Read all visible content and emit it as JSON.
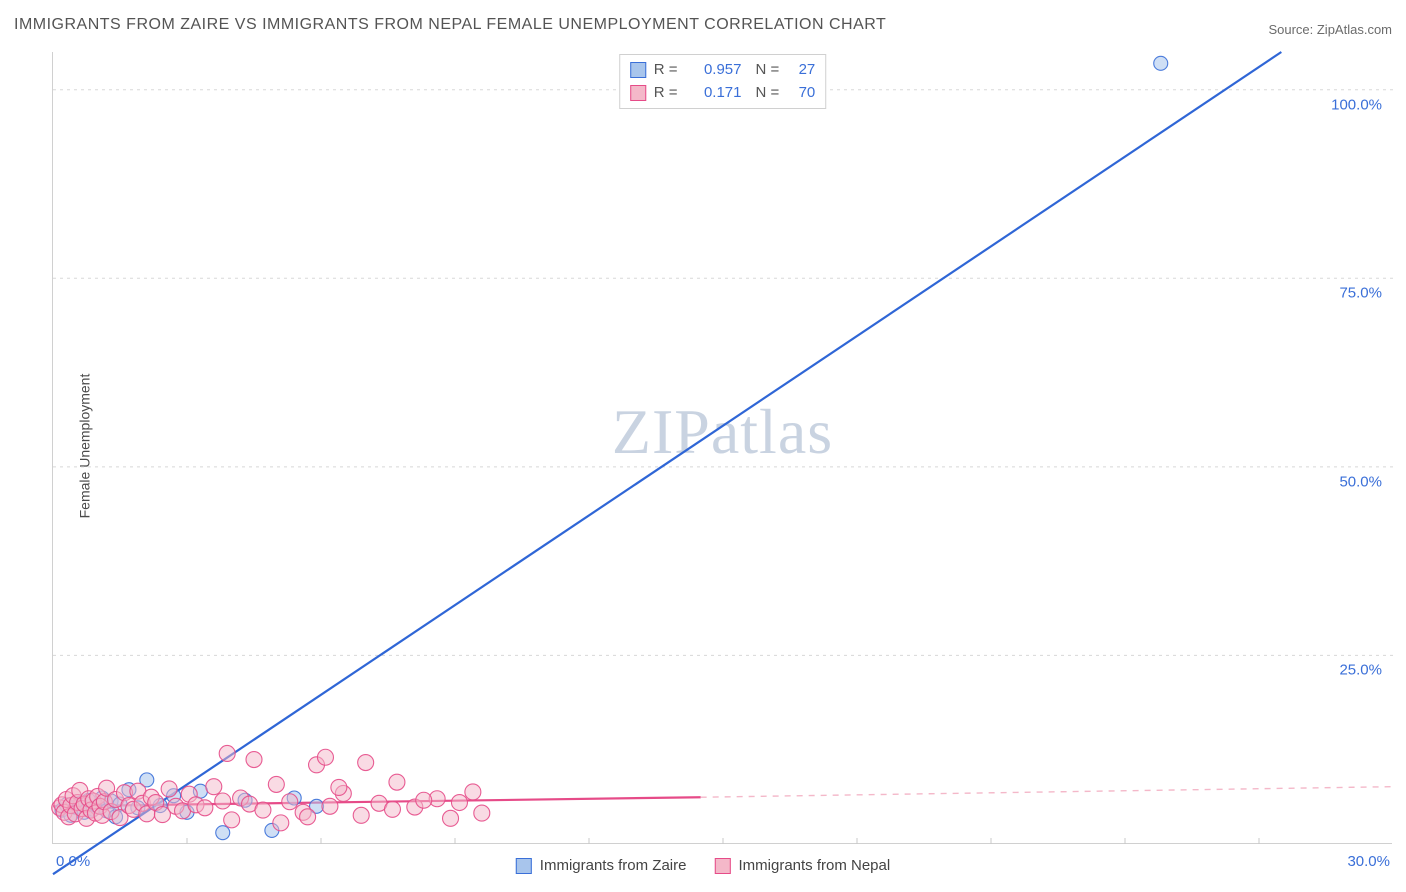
{
  "title": "IMMIGRANTS FROM ZAIRE VS IMMIGRANTS FROM NEPAL FEMALE UNEMPLOYMENT CORRELATION CHART",
  "source": "Source: ZipAtlas.com",
  "ylabel": "Female Unemployment",
  "watermark": "ZIPatlas",
  "chart": {
    "type": "scatter-with-regression",
    "xlim": [
      0,
      30
    ],
    "ylim": [
      0,
      105
    ],
    "yticks": [
      25.0,
      50.0,
      75.0,
      100.0
    ],
    "ytick_labels": [
      "25.0%",
      "50.0%",
      "75.0%",
      "100.0%"
    ],
    "x_origin_label": "0.0%",
    "x_max_label": "30.0%",
    "x_minor_ticks": [
      3,
      6,
      9,
      12,
      15,
      18,
      21,
      24,
      27
    ],
    "grid_color": "#d8d8d8",
    "background_color": "#ffffff",
    "series": [
      {
        "name": "Immigrants from Zaire",
        "color_fill": "#a8c5ec",
        "color_stroke": "#3a6fd8",
        "marker_radius": 7,
        "marker_opacity": 0.55,
        "R": "0.957",
        "N": "27",
        "regression": {
          "x1": 0,
          "y1": -4,
          "x2": 27.5,
          "y2": 105,
          "width": 2.2,
          "dash": null,
          "color": "#2f66d6"
        },
        "points": [
          [
            0.2,
            4.5
          ],
          [
            0.3,
            5.2
          ],
          [
            0.4,
            3.8
          ],
          [
            0.5,
            4.9
          ],
          [
            0.6,
            5.4
          ],
          [
            0.7,
            4.2
          ],
          [
            0.8,
            5.8
          ],
          [
            0.9,
            4.6
          ],
          [
            1.0,
            5.0
          ],
          [
            1.1,
            6.1
          ],
          [
            1.2,
            4.4
          ],
          [
            1.3,
            5.7
          ],
          [
            1.4,
            3.6
          ],
          [
            1.5,
            5.3
          ],
          [
            1.7,
            7.2
          ],
          [
            1.9,
            4.8
          ],
          [
            2.1,
            8.5
          ],
          [
            2.4,
            5.1
          ],
          [
            2.7,
            6.4
          ],
          [
            3.0,
            4.2
          ],
          [
            3.3,
            7.0
          ],
          [
            3.8,
            1.5
          ],
          [
            4.3,
            5.8
          ],
          [
            4.9,
            1.8
          ],
          [
            5.4,
            6.1
          ],
          [
            5.9,
            5.0
          ],
          [
            24.8,
            103.5
          ]
        ]
      },
      {
        "name": "Immigrants from Nepal",
        "color_fill": "#f4b8c9",
        "color_stroke": "#e64b88",
        "marker_radius": 8,
        "marker_opacity": 0.5,
        "R": "0.171",
        "N": "70",
        "regression_solid": {
          "x1": 0,
          "y1": 5.0,
          "x2": 14.5,
          "y2": 6.2,
          "width": 2.2,
          "color": "#e64b88"
        },
        "regression_dash": {
          "x1": 14.5,
          "y1": 6.2,
          "x2": 30,
          "y2": 7.6,
          "width": 1.4,
          "dash": "6,6",
          "color": "#f4b8c9"
        },
        "points": [
          [
            0.15,
            4.8
          ],
          [
            0.2,
            5.2
          ],
          [
            0.25,
            4.2
          ],
          [
            0.3,
            5.9
          ],
          [
            0.35,
            3.6
          ],
          [
            0.4,
            5.1
          ],
          [
            0.45,
            6.4
          ],
          [
            0.5,
            4.0
          ],
          [
            0.55,
            5.5
          ],
          [
            0.6,
            7.1
          ],
          [
            0.65,
            4.7
          ],
          [
            0.7,
            5.3
          ],
          [
            0.75,
            3.4
          ],
          [
            0.8,
            6.0
          ],
          [
            0.85,
            4.5
          ],
          [
            0.9,
            5.7
          ],
          [
            0.95,
            4.1
          ],
          [
            1.0,
            6.3
          ],
          [
            1.05,
            5.0
          ],
          [
            1.1,
            3.8
          ],
          [
            1.15,
            5.6
          ],
          [
            1.2,
            7.4
          ],
          [
            1.3,
            4.3
          ],
          [
            1.4,
            5.9
          ],
          [
            1.5,
            3.5
          ],
          [
            1.6,
            6.8
          ],
          [
            1.7,
            5.1
          ],
          [
            1.8,
            4.6
          ],
          [
            1.9,
            7.0
          ],
          [
            2.0,
            5.4
          ],
          [
            2.1,
            4.0
          ],
          [
            2.2,
            6.2
          ],
          [
            2.3,
            5.5
          ],
          [
            2.45,
            3.9
          ],
          [
            2.6,
            7.3
          ],
          [
            2.75,
            5.0
          ],
          [
            2.9,
            4.4
          ],
          [
            3.05,
            6.6
          ],
          [
            3.2,
            5.2
          ],
          [
            3.4,
            4.8
          ],
          [
            3.6,
            7.6
          ],
          [
            3.8,
            5.7
          ],
          [
            4.0,
            3.2
          ],
          [
            4.2,
            6.1
          ],
          [
            4.4,
            5.3
          ],
          [
            4.7,
            4.5
          ],
          [
            5.0,
            7.9
          ],
          [
            5.3,
            5.6
          ],
          [
            5.6,
            4.2
          ],
          [
            5.9,
            10.5
          ],
          [
            6.2,
            5.0
          ],
          [
            6.5,
            6.7
          ],
          [
            6.9,
            3.8
          ],
          [
            7.3,
            5.4
          ],
          [
            7.7,
            8.2
          ],
          [
            8.1,
            4.9
          ],
          [
            8.6,
            6.0
          ],
          [
            9.1,
            5.5
          ],
          [
            9.6,
            4.1
          ],
          [
            3.9,
            12.0
          ],
          [
            4.5,
            11.2
          ],
          [
            6.1,
            11.5
          ],
          [
            5.1,
            2.8
          ],
          [
            5.7,
            3.6
          ],
          [
            6.4,
            7.5
          ],
          [
            7.0,
            10.8
          ],
          [
            7.6,
            4.6
          ],
          [
            8.3,
            5.8
          ],
          [
            8.9,
            3.4
          ],
          [
            9.4,
            6.9
          ]
        ]
      }
    ]
  },
  "legend_bottom": [
    "Immigrants from Zaire",
    "Immigrants from Nepal"
  ]
}
